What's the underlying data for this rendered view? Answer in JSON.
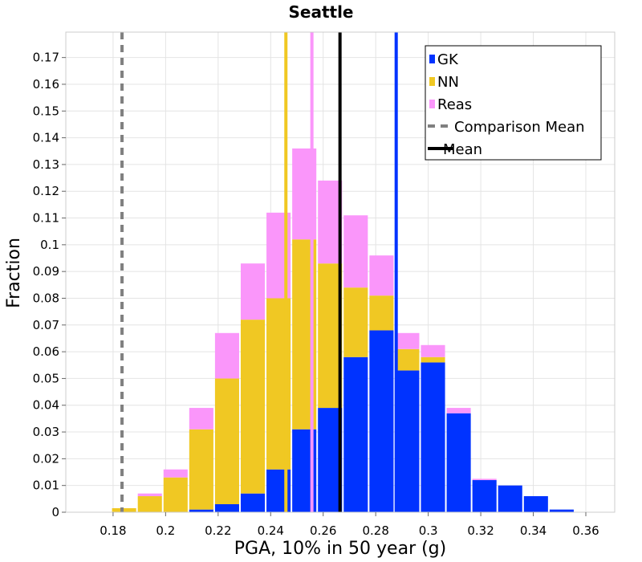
{
  "chart_data": {
    "type": "bar",
    "stacked": true,
    "title": "Seattle",
    "xlabel": "PGA, 10% in 50 year (g)",
    "ylabel": "Fraction",
    "xlim": [
      0.162,
      0.371
    ],
    "ylim": [
      0,
      0.1795
    ],
    "bin_width": 0.0098,
    "bin_centers": [
      0.1842,
      0.194,
      0.2038,
      0.2136,
      0.2234,
      0.2332,
      0.243,
      0.2528,
      0.2626,
      0.2724,
      0.2822,
      0.292,
      0.3018,
      0.3116,
      0.3214,
      0.3312,
      0.341,
      0.3508,
      0.3606
    ],
    "series": [
      {
        "name": "GK",
        "color": "#0033ff",
        "values": [
          0,
          0,
          0,
          0.001,
          0.003,
          0.007,
          0.016,
          0.031,
          0.039,
          0.058,
          0.068,
          0.053,
          0.056,
          0.037,
          0.012,
          0.01,
          0.006,
          0.001,
          0
        ]
      },
      {
        "name": "NN",
        "color": "#f0c823",
        "values": [
          0.0015,
          0.006,
          0.013,
          0.03,
          0.047,
          0.065,
          0.064,
          0.071,
          0.054,
          0.026,
          0.013,
          0.008,
          0.002,
          0,
          0,
          0,
          0,
          0,
          0
        ]
      },
      {
        "name": "Reas",
        "color": "#fa96fa",
        "values": [
          0,
          0.001,
          0.003,
          0.008,
          0.017,
          0.021,
          0.032,
          0.034,
          0.031,
          0.027,
          0.015,
          0.006,
          0.0045,
          0.002,
          0.0005,
          0,
          0,
          0,
          0
        ]
      }
    ],
    "vertical_lines": [
      {
        "name": "NN Mean",
        "x": 0.2458,
        "color": "#f0c823",
        "style": "solid"
      },
      {
        "name": "Reas Mean",
        "x": 0.2557,
        "color": "#fa96fa",
        "style": "solid"
      },
      {
        "name": "Mean",
        "x": 0.2664,
        "color": "#000000",
        "style": "solid"
      },
      {
        "name": "GK Mean",
        "x": 0.2878,
        "color": "#0033ff",
        "style": "solid"
      },
      {
        "name": "Comparison Mean",
        "x": 0.1834,
        "color": "#808080",
        "style": "dashed"
      }
    ],
    "x_ticks": [
      {
        "value": 0.18,
        "label": "0.18"
      },
      {
        "value": 0.2,
        "label": "0.2"
      },
      {
        "value": 0.22,
        "label": "0.22"
      },
      {
        "value": 0.24,
        "label": "0.24"
      },
      {
        "value": 0.26,
        "label": "0.26"
      },
      {
        "value": 0.28,
        "label": "0.28"
      },
      {
        "value": 0.3,
        "label": "0.3"
      },
      {
        "value": 0.32,
        "label": "0.32"
      },
      {
        "value": 0.34,
        "label": "0.34"
      },
      {
        "value": 0.36,
        "label": "0.36"
      }
    ],
    "y_ticks": [
      {
        "value": 0,
        "label": "0"
      },
      {
        "value": 0.01,
        "label": "0.01"
      },
      {
        "value": 0.02,
        "label": "0.02"
      },
      {
        "value": 0.03,
        "label": "0.03"
      },
      {
        "value": 0.04,
        "label": "0.04"
      },
      {
        "value": 0.05,
        "label": "0.05"
      },
      {
        "value": 0.06,
        "label": "0.06"
      },
      {
        "value": 0.07,
        "label": "0.07"
      },
      {
        "value": 0.08,
        "label": "0.08"
      },
      {
        "value": 0.09,
        "label": "0.09"
      },
      {
        "value": 0.1,
        "label": "0.1"
      },
      {
        "value": 0.11,
        "label": "0.11"
      },
      {
        "value": 0.12,
        "label": "0.12"
      },
      {
        "value": 0.13,
        "label": "0.13"
      },
      {
        "value": 0.14,
        "label": "0.14"
      },
      {
        "value": 0.15,
        "label": "0.15"
      },
      {
        "value": 0.16,
        "label": "0.16"
      },
      {
        "value": 0.17,
        "label": "0.17"
      }
    ],
    "legend": {
      "position": "top-right",
      "items": [
        {
          "label": "GK",
          "marker": "square",
          "color": "#0033ff"
        },
        {
          "label": "NN",
          "marker": "square",
          "color": "#f0c823"
        },
        {
          "label": "Reas",
          "marker": "square",
          "color": "#fa96fa"
        },
        {
          "label": "Comparison Mean",
          "marker": "dashed-line",
          "color": "#808080"
        },
        {
          "label": "Mean",
          "marker": "solid-line",
          "color": "#000000"
        }
      ]
    },
    "grid": true
  }
}
